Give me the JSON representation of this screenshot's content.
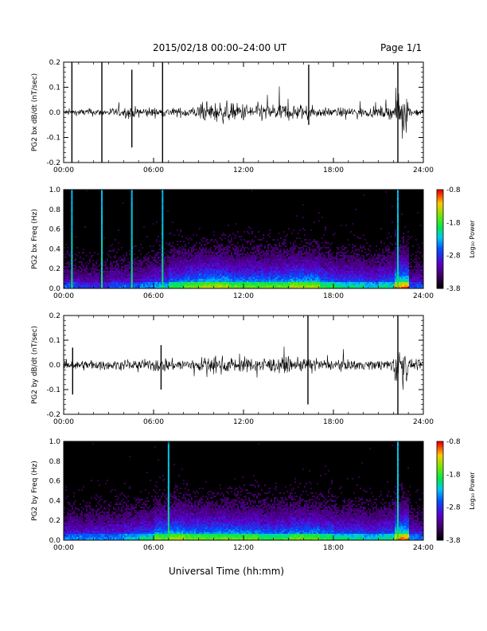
{
  "header": {
    "title": "2015/02/18  00:00–24:00 UT",
    "page": "Page 1/1"
  },
  "xlabel": "Universal Time (hh:mm)",
  "chart_data": [
    {
      "type": "line",
      "id": "bx-dbdt",
      "ylabel": "PG2 bx dB/dt (nT/sec)",
      "x_ticks": [
        "00:00",
        "06:00",
        "12:00",
        "18:00",
        "24:00"
      ],
      "xlim_hours": [
        0,
        24
      ],
      "ylim": [
        -0.2,
        0.2
      ],
      "y_ticks": [
        -0.2,
        -0.1,
        0.0,
        0.1,
        0.2
      ],
      "y_tick_labels": [
        "-0.2",
        "-0.1",
        "0.0",
        "0.1",
        "0.2"
      ],
      "color": "#000000",
      "base_noise_by_hour": [
        0.02,
        0.025,
        0.025,
        0.03,
        0.035,
        0.035,
        0.03,
        0.03,
        0.04,
        0.06,
        0.07,
        0.06,
        0.06,
        0.06,
        0.06,
        0.055,
        0.04,
        0.03,
        0.03,
        0.035,
        0.03,
        0.04,
        0.12,
        0.025
      ],
      "spikes": [
        {
          "hour": 0.55,
          "min": -0.21,
          "max": 0.21
        },
        {
          "hour": 2.55,
          "min": -0.21,
          "max": 0.21
        },
        {
          "hour": 4.55,
          "min": -0.14,
          "max": 0.17
        },
        {
          "hour": 6.6,
          "min": -0.21,
          "max": 0.21
        },
        {
          "hour": 16.35,
          "min": -0.05,
          "max": 0.19
        },
        {
          "hour": 22.3,
          "min": -0.21,
          "max": 0.21
        }
      ]
    },
    {
      "type": "heatmap",
      "id": "bx-spec",
      "ylabel": "PG2 bx Freq (Hz)",
      "x_ticks": [
        "00:00",
        "06:00",
        "12:00",
        "18:00",
        "24:00"
      ],
      "xlim_hours": [
        0,
        24
      ],
      "ylim": [
        0.0,
        1.0
      ],
      "y_ticks": [
        0.0,
        0.2,
        0.4,
        0.6,
        0.8,
        1.0
      ],
      "y_tick_labels": [
        "0.0",
        "0.2",
        "0.4",
        "0.6",
        "0.8",
        "1.0"
      ],
      "colorbar": {
        "label": "Log₁₀ Power",
        "range": [
          -3.8,
          -0.8
        ],
        "ticks": [
          -0.8,
          -1.8,
          -2.8,
          -3.8
        ],
        "tick_labels": [
          "-0.8",
          "-1.8",
          "-2.8",
          "-3.8"
        ]
      },
      "activity_by_hour": [
        0.3,
        0.25,
        0.25,
        0.3,
        0.3,
        0.35,
        0.4,
        0.5,
        0.55,
        0.6,
        0.6,
        0.55,
        0.55,
        0.55,
        0.55,
        0.6,
        0.6,
        0.5,
        0.45,
        0.45,
        0.4,
        0.45,
        0.7,
        0.3
      ],
      "bright_columns_hours": [
        0.55,
        2.55,
        4.55,
        6.6,
        22.3
      ]
    },
    {
      "type": "line",
      "id": "by-dbdt",
      "ylabel": "PG2 by dB/dt (nT/sec)",
      "x_ticks": [
        "00:00",
        "06:00",
        "12:00",
        "18:00",
        "24:00"
      ],
      "xlim_hours": [
        0,
        24
      ],
      "ylim": [
        -0.2,
        0.2
      ],
      "y_ticks": [
        -0.2,
        -0.1,
        0.0,
        0.1,
        0.2
      ],
      "y_tick_labels": [
        "-0.2",
        "-0.1",
        "0.0",
        "0.1",
        "0.2"
      ],
      "color": "#000000",
      "base_noise_by_hour": [
        0.03,
        0.035,
        0.03,
        0.03,
        0.035,
        0.035,
        0.05,
        0.04,
        0.045,
        0.05,
        0.055,
        0.05,
        0.05,
        0.05,
        0.05,
        0.045,
        0.04,
        0.035,
        0.035,
        0.035,
        0.03,
        0.04,
        0.12,
        0.03
      ],
      "spikes": [
        {
          "hour": 0.6,
          "min": -0.12,
          "max": 0.07
        },
        {
          "hour": 6.5,
          "min": -0.1,
          "max": 0.08
        },
        {
          "hour": 16.3,
          "min": -0.16,
          "max": 0.2
        },
        {
          "hour": 22.3,
          "min": -0.21,
          "max": 0.21
        }
      ]
    },
    {
      "type": "heatmap",
      "id": "by-spec",
      "ylabel": "PG2 by Freq (Hz)",
      "x_ticks": [
        "00:00",
        "06:00",
        "12:00",
        "18:00",
        "24:00"
      ],
      "xlim_hours": [
        0,
        24
      ],
      "ylim": [
        0.0,
        1.0
      ],
      "y_ticks": [
        0.0,
        0.2,
        0.4,
        0.6,
        0.8,
        1.0
      ],
      "y_tick_labels": [
        "0.0",
        "0.2",
        "0.4",
        "0.6",
        "0.8",
        "1.0"
      ],
      "colorbar": {
        "label": "Log₁₀ Power",
        "range": [
          -3.8,
          -0.8
        ],
        "ticks": [
          -0.8,
          -1.8,
          -2.8,
          -3.8
        ],
        "tick_labels": [
          "-0.8",
          "-1.8",
          "-2.8",
          "-3.8"
        ]
      },
      "activity_by_hour": [
        0.35,
        0.35,
        0.35,
        0.35,
        0.4,
        0.45,
        0.55,
        0.6,
        0.55,
        0.55,
        0.55,
        0.55,
        0.55,
        0.5,
        0.5,
        0.55,
        0.55,
        0.5,
        0.45,
        0.45,
        0.4,
        0.45,
        0.7,
        0.35
      ],
      "bright_columns_hours": [
        7.0,
        22.3
      ]
    }
  ]
}
